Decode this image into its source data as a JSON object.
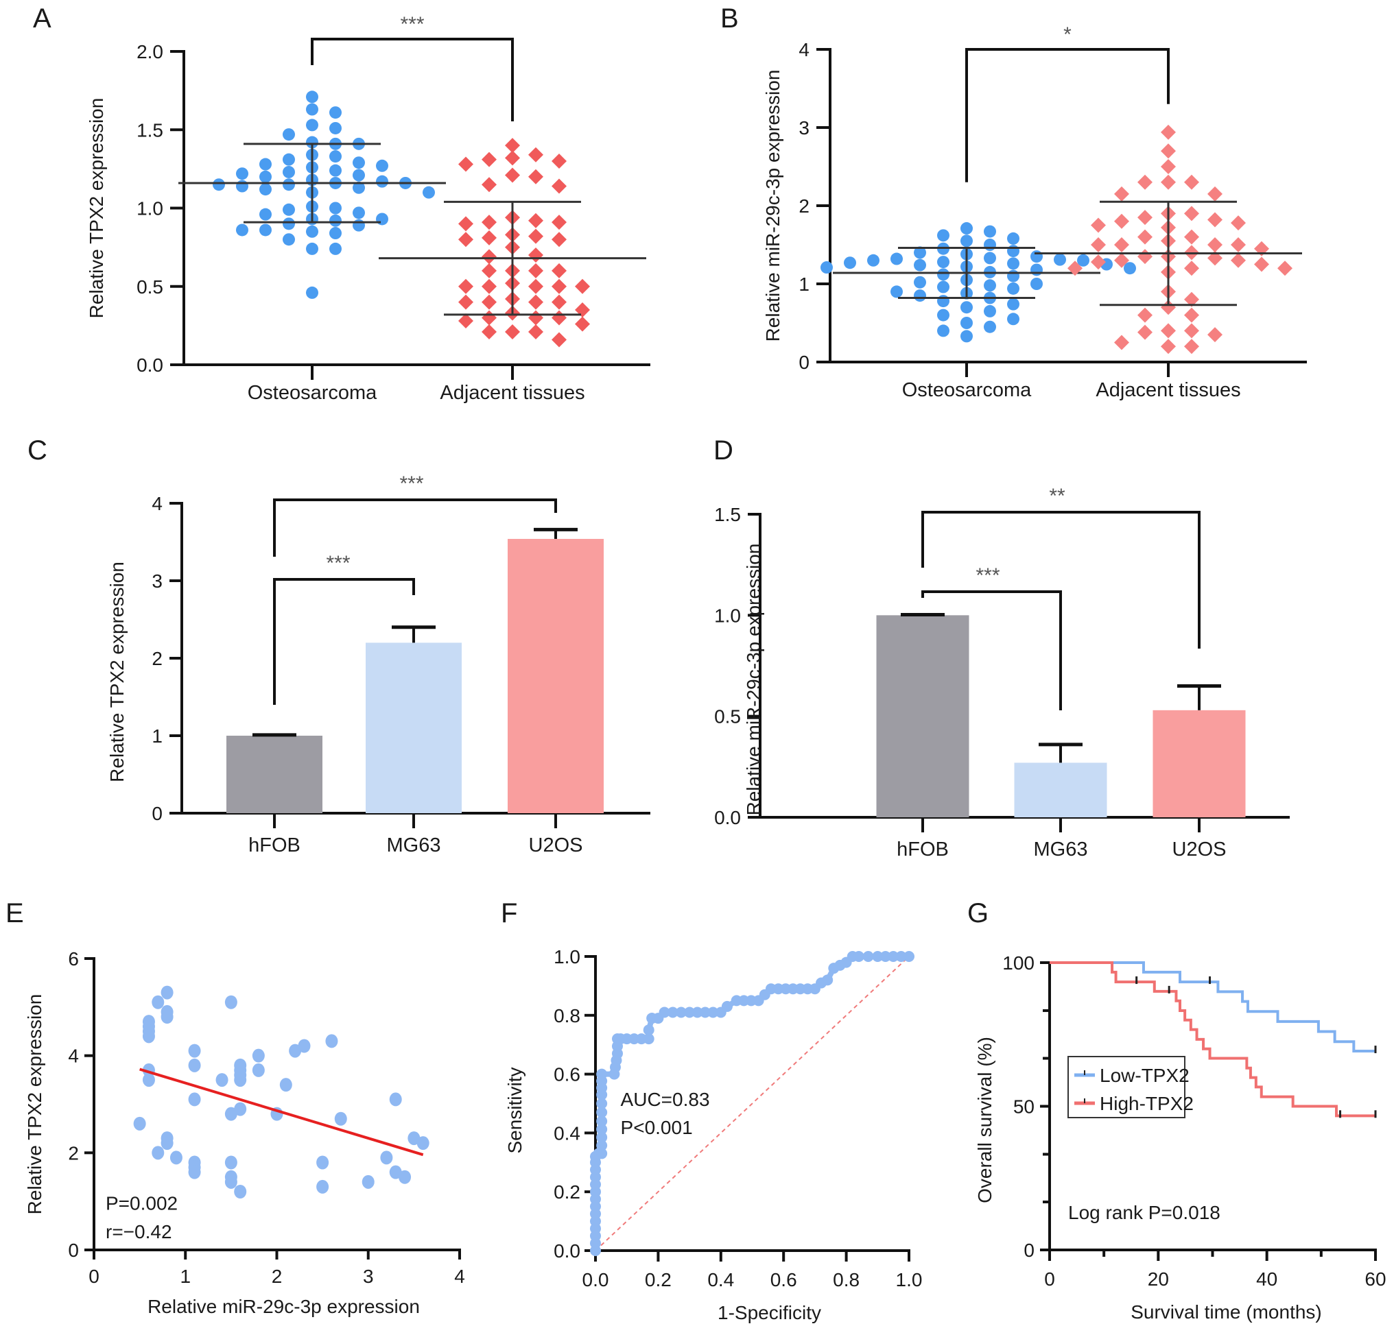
{
  "figure": {
    "panels": [
      "A",
      "B",
      "C",
      "D",
      "E",
      "F",
      "G"
    ]
  },
  "colors": {
    "blue_points": "#4a9cf0",
    "red_points": "#f05a5a",
    "light_blue": "#8fb8f2",
    "bar_gray": "#9d9ca3",
    "bar_blue": "#c7dbf5",
    "bar_pink": "#f99e9e",
    "fit_line": "#e62020",
    "km_low": "#7fb0f0",
    "km_high": "#f07070",
    "diag": "#f07a7a",
    "axis": "#111111"
  },
  "chart_data": [
    {
      "panel": "A",
      "type": "scatter",
      "subtype": "dot-plot-with-mean-sd",
      "title": "",
      "ylabel": "Relative TPX2 expression",
      "xlabel": "",
      "categories": [
        "Osteosarcoma",
        "Adjacent tissues"
      ],
      "ylim": [
        0,
        2.0
      ],
      "yticks": [
        "0.0",
        "0.5",
        "1.0",
        "1.5",
        "2.0"
      ],
      "yticks_values": [
        0,
        0.5,
        1.0,
        1.5,
        2.0
      ],
      "significance": [
        {
          "from": 0,
          "to": 1,
          "label": "***"
        }
      ],
      "series": [
        {
          "name": "Osteosarcoma",
          "marker": "circle",
          "color": "#4a9cf0",
          "mean": 1.16,
          "sd": 0.25,
          "values": [
            1.71,
            1.63,
            1.61,
            1.53,
            1.51,
            1.47,
            1.42,
            1.41,
            1.41,
            1.34,
            1.33,
            1.31,
            1.29,
            1.28,
            1.27,
            1.26,
            1.24,
            1.23,
            1.22,
            1.21,
            1.2,
            1.18,
            1.17,
            1.16,
            1.16,
            1.15,
            1.15,
            1.14,
            1.13,
            1.12,
            1.1,
            1.1,
            1.01,
            1.0,
            0.99,
            0.97,
            0.96,
            0.93,
            0.93,
            0.92,
            0.9,
            0.89,
            0.86,
            0.86,
            0.85,
            0.84,
            0.8,
            0.74,
            0.74,
            0.46
          ]
        },
        {
          "name": "Adjacent tissues",
          "marker": "diamond",
          "color": "#f05a5a",
          "mean": 0.68,
          "sd": 0.36,
          "values": [
            1.4,
            1.34,
            1.32,
            1.31,
            1.3,
            1.28,
            1.21,
            1.2,
            1.15,
            1.14,
            0.94,
            0.92,
            0.91,
            0.91,
            0.9,
            0.83,
            0.82,
            0.81,
            0.8,
            0.8,
            0.75,
            0.7,
            0.69,
            0.6,
            0.6,
            0.6,
            0.6,
            0.52,
            0.5,
            0.5,
            0.5,
            0.5,
            0.5,
            0.42,
            0.4,
            0.4,
            0.4,
            0.4,
            0.35,
            0.33,
            0.3,
            0.3,
            0.3,
            0.28,
            0.26,
            0.21,
            0.21,
            0.21,
            0.16
          ]
        }
      ]
    },
    {
      "panel": "B",
      "type": "scatter",
      "subtype": "dot-plot-with-mean-sd",
      "title": "",
      "ylabel": "Relative miR-29c-3p expression",
      "xlabel": "",
      "categories": [
        "Osteosarcoma",
        "Adjacent tissues"
      ],
      "ylim": [
        0,
        4
      ],
      "yticks": [
        "0",
        "1",
        "2",
        "3",
        "4"
      ],
      "yticks_values": [
        0,
        1,
        2,
        3,
        4
      ],
      "significance": [
        {
          "from": 0,
          "to": 1,
          "label": "*"
        }
      ],
      "series": [
        {
          "name": "Osteosarcoma",
          "marker": "circle",
          "color": "#4a9cf0",
          "mean": 1.14,
          "sd": 0.32,
          "values": [
            1.71,
            1.67,
            1.62,
            1.58,
            1.55,
            1.5,
            1.45,
            1.42,
            1.4,
            1.38,
            1.35,
            1.33,
            1.32,
            1.31,
            1.3,
            1.3,
            1.28,
            1.27,
            1.26,
            1.25,
            1.24,
            1.22,
            1.21,
            1.2,
            1.18,
            1.15,
            1.12,
            1.1,
            1.05,
            1.02,
            1.0,
            0.98,
            0.96,
            0.94,
            0.9,
            0.88,
            0.85,
            0.82,
            0.78,
            0.74,
            0.7,
            0.65,
            0.6,
            0.55,
            0.5,
            0.45,
            0.4,
            0.33
          ]
        },
        {
          "name": "Adjacent tissues",
          "marker": "diamond",
          "color": "#f58080",
          "mean": 1.39,
          "sd": 0.66,
          "values": [
            2.94,
            2.7,
            2.5,
            2.3,
            2.3,
            2.3,
            2.15,
            2.15,
            1.9,
            1.9,
            1.85,
            1.82,
            1.8,
            1.78,
            1.75,
            1.72,
            1.6,
            1.6,
            1.55,
            1.5,
            1.5,
            1.5,
            1.5,
            1.45,
            1.4,
            1.35,
            1.35,
            1.33,
            1.3,
            1.3,
            1.28,
            1.25,
            1.2,
            1.2,
            1.2,
            1.15,
            0.9,
            0.8,
            0.7,
            0.6,
            0.6,
            0.4,
            0.4,
            0.38,
            0.35,
            0.25,
            0.2,
            0.2
          ]
        }
      ]
    },
    {
      "panel": "C",
      "type": "bar",
      "title": "",
      "ylabel": "Relative TPX2 expression",
      "xlabel": "",
      "categories": [
        "hFOB",
        "MG63",
        "U2OS"
      ],
      "values": [
        1.0,
        2.2,
        3.54
      ],
      "errors": [
        0.01,
        0.2,
        0.12
      ],
      "bar_colors": [
        "#9d9ca3",
        "#c7dbf5",
        "#f99e9e"
      ],
      "ylim": [
        0,
        4
      ],
      "yticks": [
        "0",
        "1",
        "2",
        "3",
        "4"
      ],
      "yticks_values": [
        0,
        1,
        2,
        3,
        4
      ],
      "significance": [
        {
          "from": 0,
          "to": 1,
          "label": "***"
        },
        {
          "from": 0,
          "to": 2,
          "label": "***"
        }
      ]
    },
    {
      "panel": "D",
      "type": "bar",
      "title": "",
      "ylabel": "Relative miR-29c-3p expression",
      "xlabel": "",
      "categories": [
        "hFOB",
        "MG63",
        "U2OS"
      ],
      "values": [
        1.0,
        0.27,
        0.53
      ],
      "errors": [
        0.003,
        0.09,
        0.12
      ],
      "bar_colors": [
        "#9d9ca3",
        "#c7dbf5",
        "#f99e9e"
      ],
      "ylim": [
        0,
        1.5
      ],
      "yticks": [
        "0.0",
        "0.5",
        "1.0",
        "1.5"
      ],
      "yticks_values": [
        0,
        0.5,
        1.0,
        1.5
      ],
      "significance": [
        {
          "from": 0,
          "to": 1,
          "label": "***"
        },
        {
          "from": 0,
          "to": 2,
          "label": "**"
        }
      ]
    },
    {
      "panel": "E",
      "type": "scatter",
      "title": "",
      "xlabel": "Relative miR-29c-3p expression",
      "ylabel": "Relative TPX2 expression",
      "xlim": [
        0,
        4
      ],
      "ylim": [
        0,
        6
      ],
      "xticks": [
        "0",
        "1",
        "2",
        "3",
        "4"
      ],
      "xticks_values": [
        0,
        1,
        2,
        3,
        4
      ],
      "yticks": [
        "0",
        "2",
        "4",
        "6"
      ],
      "yticks_values": [
        0,
        2,
        4,
        6
      ],
      "annotations": [
        "P=0.002",
        "r=−0.42"
      ],
      "fit_line": {
        "x": [
          0.5,
          3.6
        ],
        "y": [
          3.72,
          1.96
        ]
      },
      "points": [
        [
          0.5,
          2.6
        ],
        [
          0.6,
          4.7
        ],
        [
          0.6,
          4.6
        ],
        [
          0.6,
          4.5
        ],
        [
          0.6,
          4.4
        ],
        [
          0.6,
          3.7
        ],
        [
          0.6,
          3.5
        ],
        [
          0.7,
          5.1
        ],
        [
          0.7,
          2.0
        ],
        [
          0.8,
          5.3
        ],
        [
          0.8,
          4.9
        ],
        [
          0.8,
          4.8
        ],
        [
          0.8,
          2.3
        ],
        [
          0.8,
          2.2
        ],
        [
          0.9,
          1.9
        ],
        [
          1.1,
          4.1
        ],
        [
          1.1,
          3.8
        ],
        [
          1.1,
          3.1
        ],
        [
          1.1,
          1.8
        ],
        [
          1.1,
          1.7
        ],
        [
          1.1,
          1.6
        ],
        [
          1.4,
          3.5
        ],
        [
          1.5,
          5.1
        ],
        [
          1.5,
          2.8
        ],
        [
          1.5,
          1.8
        ],
        [
          1.5,
          1.5
        ],
        [
          1.5,
          1.4
        ],
        [
          1.6,
          3.8
        ],
        [
          1.6,
          3.7
        ],
        [
          1.6,
          3.6
        ],
        [
          1.6,
          3.5
        ],
        [
          1.6,
          2.9
        ],
        [
          1.6,
          1.2
        ],
        [
          1.8,
          4.0
        ],
        [
          1.8,
          3.7
        ],
        [
          2.0,
          2.8
        ],
        [
          2.1,
          3.4
        ],
        [
          2.2,
          4.1
        ],
        [
          2.3,
          4.2
        ],
        [
          2.5,
          1.8
        ],
        [
          2.5,
          1.3
        ],
        [
          2.6,
          4.3
        ],
        [
          2.7,
          2.7
        ],
        [
          3.0,
          1.4
        ],
        [
          3.2,
          1.9
        ],
        [
          3.3,
          3.1
        ],
        [
          3.3,
          1.6
        ],
        [
          3.4,
          1.5
        ],
        [
          3.5,
          2.3
        ],
        [
          3.6,
          2.2
        ]
      ]
    },
    {
      "panel": "F",
      "type": "line",
      "subtype": "roc",
      "title": "",
      "xlabel": "1-Specificity",
      "ylabel": "Sensitivity",
      "xlim": [
        0,
        1.0
      ],
      "ylim": [
        0,
        1.0
      ],
      "xticks": [
        "0.0",
        "0.2",
        "0.4",
        "0.6",
        "0.8",
        "1.0"
      ],
      "xticks_values": [
        0,
        0.2,
        0.4,
        0.6,
        0.8,
        1.0
      ],
      "yticks": [
        "0.0",
        "0.2",
        "0.4",
        "0.6",
        "0.8",
        "1.0"
      ],
      "yticks_values": [
        0,
        0.2,
        0.4,
        0.6,
        0.8,
        1.0
      ],
      "annotations": [
        "AUC=0.83",
        "P<0.001"
      ],
      "reference_line": {
        "x": [
          0,
          1
        ],
        "y": [
          0,
          1
        ],
        "style": "dashed"
      },
      "roc": {
        "x": [
          0,
          0,
          0,
          0,
          0,
          0,
          0,
          0,
          0.01,
          0.02,
          0.02,
          0.02,
          0.02,
          0.06,
          0.07,
          0.07,
          0.08,
          0.1,
          0.17,
          0.17,
          0.18,
          0.18,
          0.2,
          0.22,
          0.3,
          0.4,
          0.42,
          0.45,
          0.52,
          0.54,
          0.56,
          0.7,
          0.72,
          0.74,
          0.76,
          0.78,
          0.8,
          0.82,
          0.84,
          0.9,
          1.0
        ],
        "y": [
          0,
          0.05,
          0.1,
          0.15,
          0.2,
          0.25,
          0.3,
          0.32,
          0.33,
          0.33,
          0.44,
          0.53,
          0.6,
          0.6,
          0.67,
          0.72,
          0.72,
          0.72,
          0.72,
          0.75,
          0.79,
          0.79,
          0.79,
          0.81,
          0.81,
          0.81,
          0.83,
          0.85,
          0.85,
          0.87,
          0.89,
          0.89,
          0.91,
          0.92,
          0.96,
          0.97,
          0.98,
          1.0,
          1.0,
          1.0,
          1.0
        ]
      }
    },
    {
      "panel": "G",
      "type": "line",
      "subtype": "kaplan-meier",
      "title": "",
      "xlabel": "Survival time (months)",
      "ylabel": "Overall survival (%)",
      "xlim": [
        0,
        60
      ],
      "ylim": [
        0,
        100
      ],
      "xticks": [
        "0",
        "20",
        "40",
        "60"
      ],
      "xticks_values": [
        0,
        20,
        40,
        60
      ],
      "xminor": [
        10,
        30,
        50
      ],
      "yticks": [
        "0",
        "50",
        "100"
      ],
      "yticks_values": [
        0,
        50,
        100
      ],
      "yminor": [
        16.7,
        33.3,
        66.7,
        83.3
      ],
      "legend": {
        "position": "center-left",
        "entries": [
          "Low-TPX2",
          "High-TPX2"
        ]
      },
      "annotations": [
        "Log rank P=0.018"
      ],
      "series": [
        {
          "name": "Low-TPX2",
          "color": "#7fb0f0",
          "steps": [
            [
              0,
              100
            ],
            [
              17.3,
              96.7
            ],
            [
              24,
              93.3
            ],
            [
              31,
              89.9
            ],
            [
              35.5,
              86.5
            ],
            [
              36.5,
              83
            ],
            [
              42,
              79.5
            ],
            [
              49.5,
              76
            ],
            [
              52.5,
              72.5
            ],
            [
              56,
              69.2
            ],
            [
              60,
              69.2
            ]
          ],
          "censored": [
            [
              29.5,
              93.3
            ],
            [
              60,
              69.2
            ]
          ]
        },
        {
          "name": "High-TPX2",
          "color": "#f07070",
          "steps": [
            [
              0,
              100
            ],
            [
              11.2,
              100
            ],
            [
              11.5,
              96.7
            ],
            [
              12.2,
              93.3
            ],
            [
              19.3,
              90
            ],
            [
              23.3,
              86.7
            ],
            [
              24,
              83.3
            ],
            [
              24.9,
              80
            ],
            [
              26,
              76.7
            ],
            [
              27.1,
              73.3
            ],
            [
              28.3,
              70
            ],
            [
              29.5,
              66.7
            ],
            [
              36.3,
              63.3
            ],
            [
              37,
              60
            ],
            [
              38,
              56.7
            ],
            [
              39,
              53.3
            ],
            [
              44.8,
              50
            ],
            [
              52.8,
              46.7
            ],
            [
              60,
              46.7
            ]
          ],
          "censored": [
            [
              16,
              93.3
            ],
            [
              22,
              90
            ],
            [
              53.5,
              46.7
            ],
            [
              60,
              46.7
            ]
          ]
        }
      ]
    }
  ]
}
